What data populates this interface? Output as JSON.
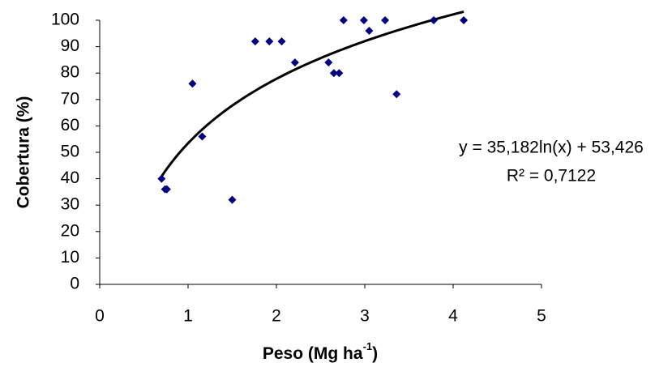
{
  "chart_data": {
    "type": "scatter",
    "x_label": [
      "Peso (Mg ha",
      "-1",
      ")"
    ],
    "y_label": "Cobertura (%)",
    "series": [
      {
        "color": "#000080",
        "x": [
          0.7,
          0.74,
          0.76,
          1.05,
          1.16,
          1.5,
          1.76,
          1.92,
          2.06,
          2.21,
          2.59,
          2.65,
          2.71,
          2.76,
          2.99,
          3.05,
          3.23,
          3.36,
          3.78,
          4.12
        ],
        "values": [
          40,
          36,
          36,
          76,
          56,
          32,
          92,
          92,
          92,
          84,
          84,
          80,
          80,
          100,
          100,
          96,
          100,
          72,
          100,
          100
        ]
      }
    ],
    "trendline": {
      "type": "log",
      "a": 35.182,
      "b": 53.426,
      "color": "#000000",
      "equation": "y = 35,182ln(x) + 53,426",
      "r2": "R² = 0,7122"
    },
    "xlim": [
      0,
      5
    ],
    "xticks": [
      0,
      1,
      2,
      3,
      4,
      5
    ],
    "ylim": [
      0,
      100
    ],
    "yticks": [
      0,
      10,
      20,
      30,
      40,
      50,
      60,
      70,
      80,
      90,
      100
    ]
  }
}
